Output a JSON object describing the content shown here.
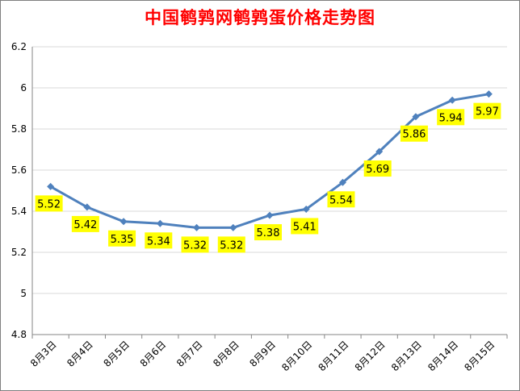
{
  "chart_data": {
    "type": "line",
    "title": "中国鹌鹑网鹌鹑蛋价格走势图",
    "categories": [
      "8月3日",
      "8月4日",
      "8月5日",
      "8月6日",
      "8月7日",
      "8月8日",
      "8月9日",
      "8月10日",
      "8月11日",
      "8月12日",
      "8月13日",
      "8月14日",
      "8月15日"
    ],
    "values": [
      5.52,
      5.42,
      5.35,
      5.34,
      5.32,
      5.32,
      5.38,
      5.41,
      5.54,
      5.69,
      5.86,
      5.94,
      5.97
    ],
    "data_labels": [
      "5.52",
      "5.42",
      "5.35",
      "5.34",
      "5.32",
      "5.32",
      "5.38",
      "5.41",
      "5.54",
      "5.69",
      "5.86",
      "5.94",
      "5.97"
    ],
    "ylim": [
      4.8,
      6.2
    ],
    "y_ticks": [
      "4.8",
      "5",
      "5.2",
      "5.4",
      "5.6",
      "5.8",
      "6",
      "6.2"
    ],
    "grid": true,
    "legend": "none",
    "xlabel": "",
    "ylabel": "",
    "colors": {
      "line": "#4f81bd",
      "label_bg": "#ffff00",
      "title": "#ff0000",
      "grid": "#d9d9d9"
    }
  }
}
